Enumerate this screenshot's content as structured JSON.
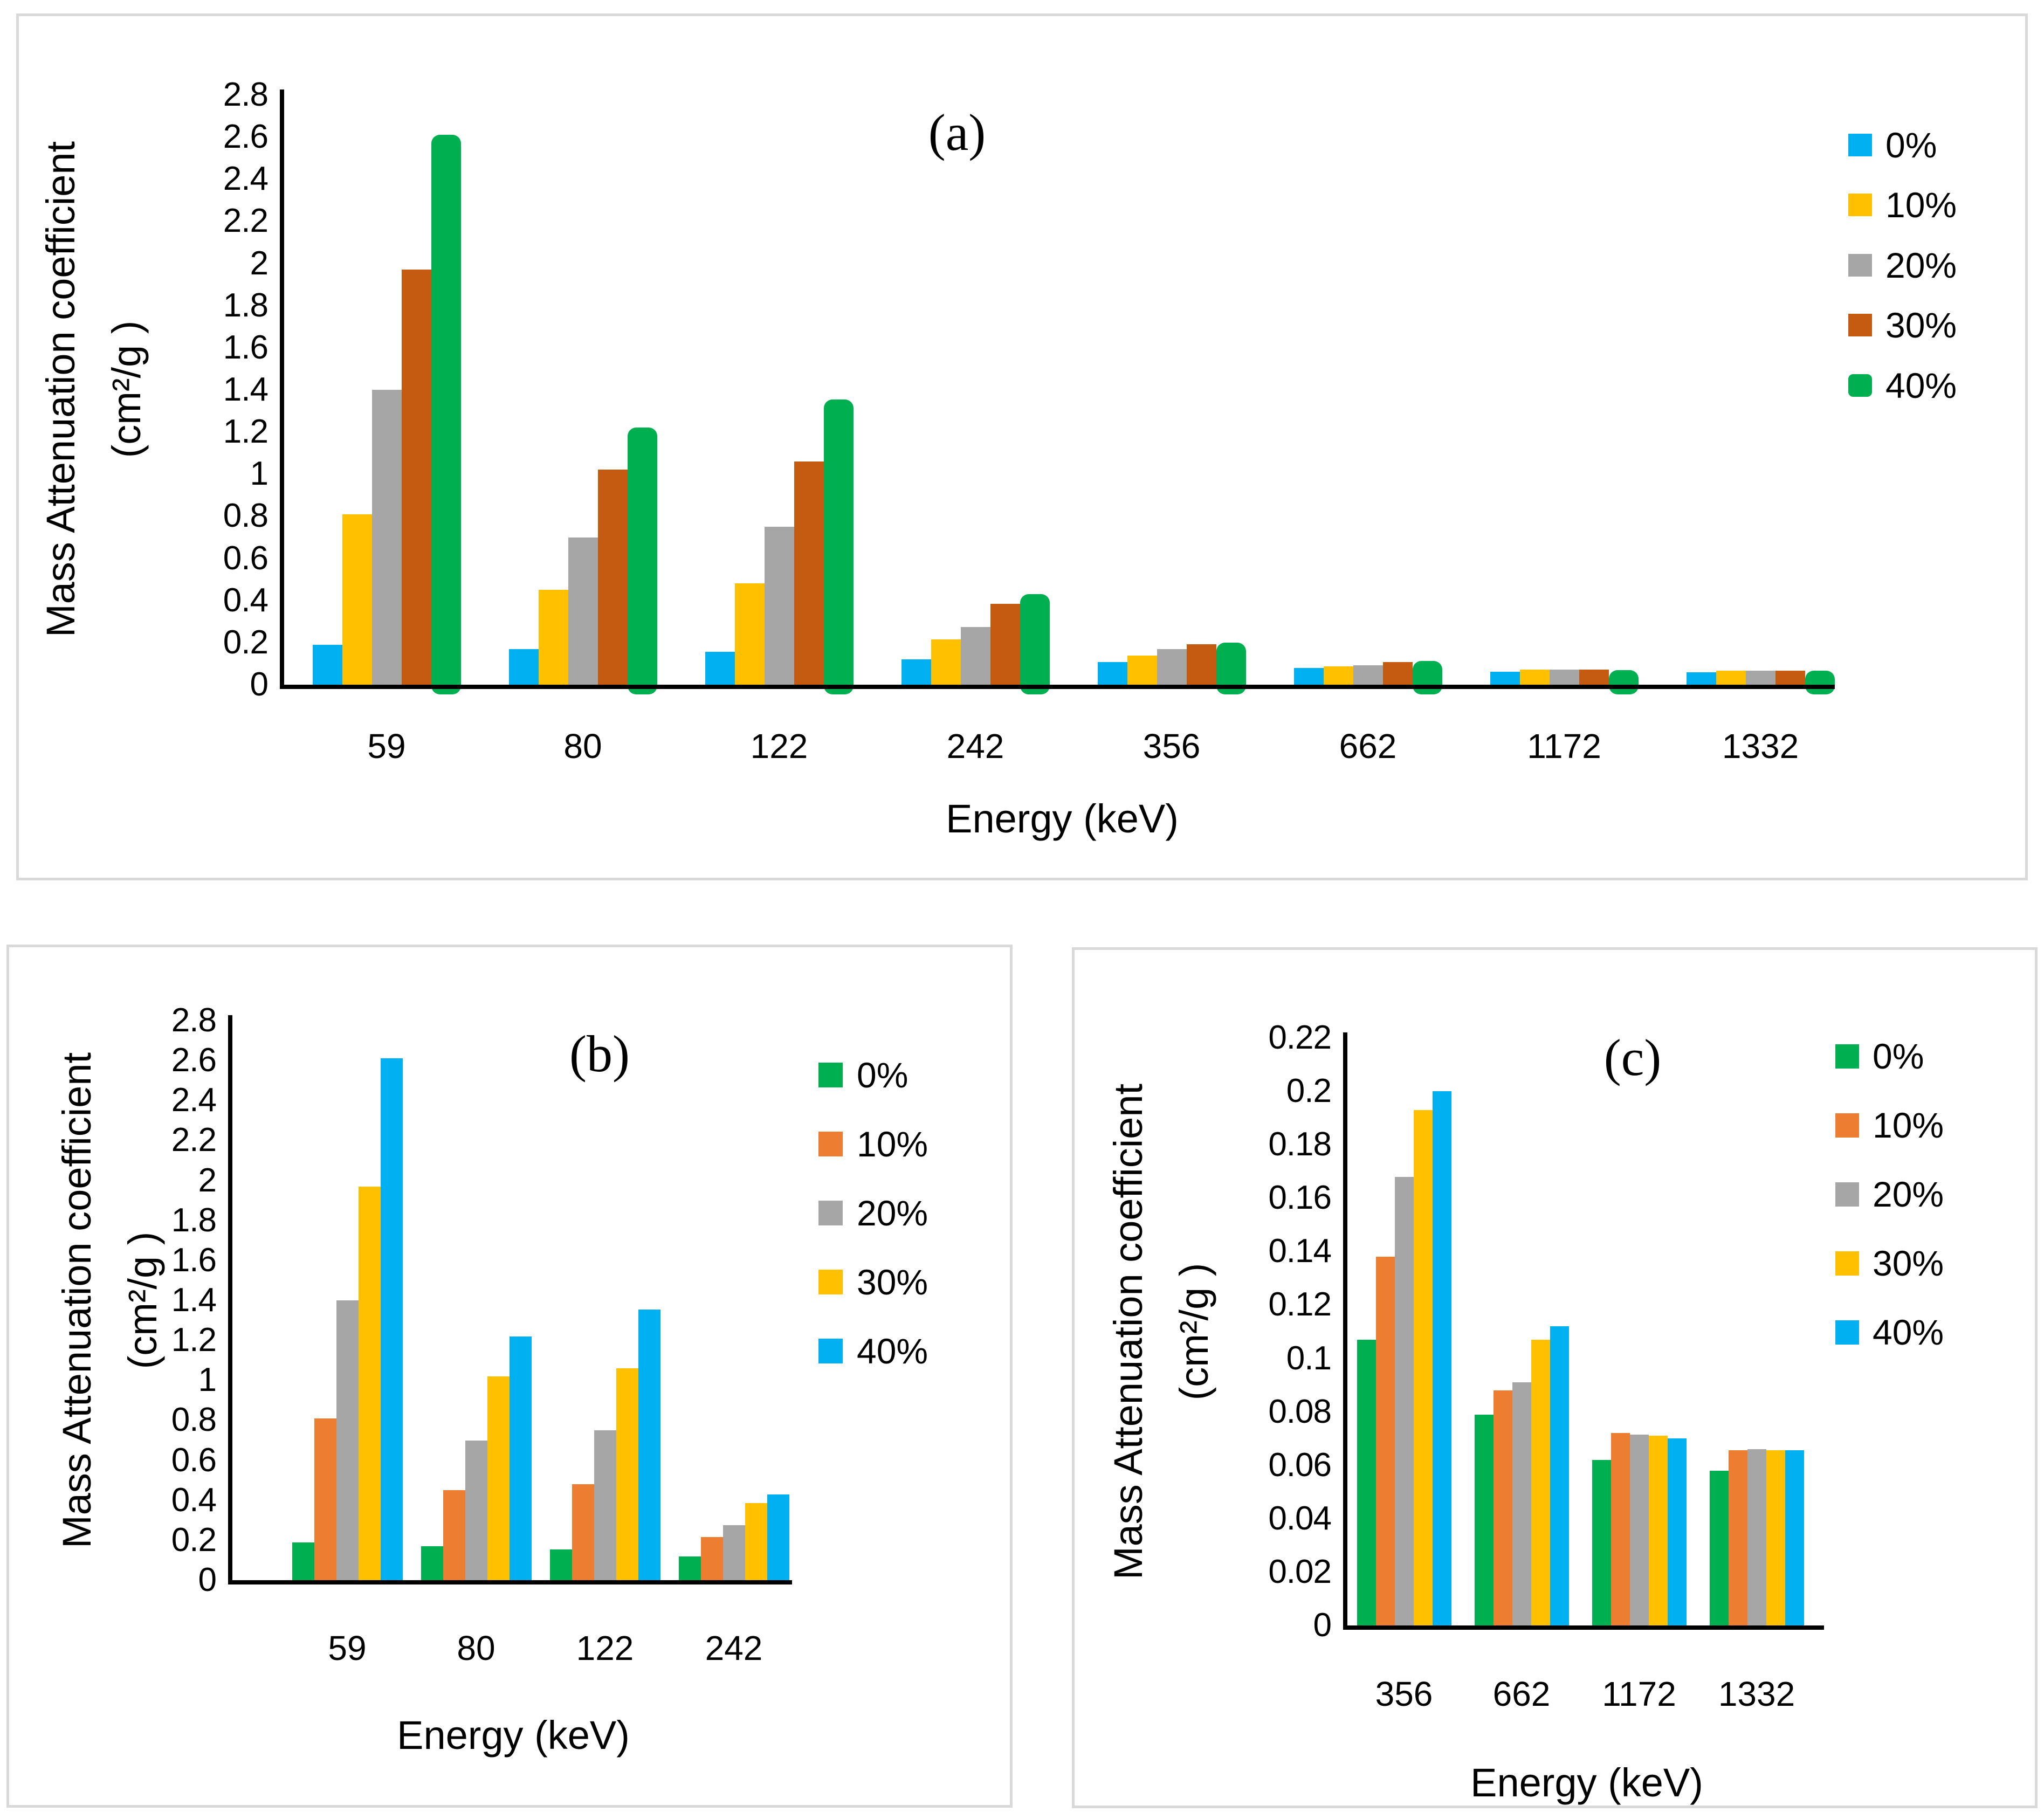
{
  "figure": {
    "background_color": "#ffffff",
    "panel_border_color": "#d9d9d9",
    "axis_color": "#000000"
  },
  "chart_data": [
    {
      "panel": "a",
      "type": "bar",
      "title": "(a)",
      "xlabel": "Energy (keV)",
      "ylabel_line1": "Mass Attenuation coefficient",
      "ylabel_line2": "(cm²/g )",
      "categories": [
        "59",
        "80",
        "122",
        "242",
        "356",
        "662",
        "1172",
        "1332"
      ],
      "ylim": [
        0,
        2.8
      ],
      "y_ticks": [
        "2.8",
        "2.6",
        "2.4",
        "2.2",
        "2",
        "1.8",
        "1.6",
        "1.4",
        "1.2",
        "1",
        "0.8",
        "0.6",
        "0.4",
        "0.2",
        "0"
      ],
      "grid": "off",
      "legend_position": "right",
      "series": [
        {
          "name": "0%",
          "color": "#00B0F0",
          "rounded": false,
          "values": [
            0.19,
            0.17,
            0.155,
            0.12,
            0.107,
            0.079,
            0.062,
            0.058
          ]
        },
        {
          "name": "10%",
          "color": "#FFC000",
          "rounded": false,
          "values": [
            0.81,
            0.45,
            0.48,
            0.215,
            0.138,
            0.088,
            0.072,
            0.0655
          ]
        },
        {
          "name": "20%",
          "color": "#A6A6A6",
          "rounded": false,
          "values": [
            1.4,
            0.7,
            0.75,
            0.275,
            0.168,
            0.091,
            0.0715,
            0.066
          ]
        },
        {
          "name": "30%",
          "color": "#C55A11",
          "rounded": false,
          "values": [
            1.97,
            1.02,
            1.06,
            0.385,
            0.193,
            0.107,
            0.071,
            0.0655
          ]
        },
        {
          "name": "40%",
          "color": "#00B050",
          "rounded": true,
          "values": [
            2.61,
            1.22,
            1.355,
            0.43,
            0.2,
            0.112,
            0.07,
            0.0655
          ]
        }
      ]
    },
    {
      "panel": "b",
      "type": "bar",
      "title": "(b)",
      "xlabel": "Energy (keV)",
      "ylabel_line1": "Mass Attenuation coefficient",
      "ylabel_line2": "(cm²/g )",
      "categories": [
        "59",
        "80",
        "122",
        "242"
      ],
      "ylim": [
        0,
        2.8
      ],
      "y_ticks": [
        "2.8",
        "2.6",
        "2.4",
        "2.2",
        "2",
        "1.8",
        "1.6",
        "1.4",
        "1.2",
        "1",
        "0.8",
        "0.6",
        "0.4",
        "0.2",
        "0"
      ],
      "grid": "off",
      "legend_position": "right",
      "series": [
        {
          "name": "0%",
          "color": "#00B050",
          "rounded": false,
          "values": [
            0.19,
            0.17,
            0.155,
            0.12
          ]
        },
        {
          "name": "10%",
          "color": "#ED7D31",
          "rounded": false,
          "values": [
            0.81,
            0.45,
            0.48,
            0.215
          ]
        },
        {
          "name": "20%",
          "color": "#A6A6A6",
          "rounded": false,
          "values": [
            1.4,
            0.7,
            0.75,
            0.275
          ]
        },
        {
          "name": "30%",
          "color": "#FFC000",
          "rounded": false,
          "values": [
            1.97,
            1.02,
            1.06,
            0.385
          ]
        },
        {
          "name": "40%",
          "color": "#00B0F0",
          "rounded": false,
          "values": [
            2.61,
            1.22,
            1.355,
            0.43
          ]
        }
      ]
    },
    {
      "panel": "c",
      "type": "bar",
      "title": "(c)",
      "xlabel": "Energy (keV)",
      "ylabel_line1": "Mass Attenuation coefficient",
      "ylabel_line2": "(cm²/g )",
      "categories": [
        "356",
        "662",
        "1172",
        "1332"
      ],
      "ylim": [
        0,
        0.22
      ],
      "y_ticks": [
        "0.22",
        "0.2",
        "0.18",
        "0.16",
        "0.14",
        "0.12",
        "0.1",
        "0.08",
        "0.06",
        "0.04",
        "0.02",
        "0"
      ],
      "grid": "off",
      "legend_position": "right",
      "series": [
        {
          "name": "0%",
          "color": "#00B050",
          "rounded": false,
          "values": [
            0.107,
            0.079,
            0.062,
            0.058
          ]
        },
        {
          "name": "10%",
          "color": "#ED7D31",
          "rounded": false,
          "values": [
            0.138,
            0.088,
            0.072,
            0.0655
          ]
        },
        {
          "name": "20%",
          "color": "#A6A6A6",
          "rounded": false,
          "values": [
            0.168,
            0.091,
            0.0715,
            0.066
          ]
        },
        {
          "name": "30%",
          "color": "#FFC000",
          "rounded": false,
          "values": [
            0.193,
            0.107,
            0.071,
            0.0655
          ]
        },
        {
          "name": "40%",
          "color": "#00B0F0",
          "rounded": false,
          "values": [
            0.2,
            0.112,
            0.07,
            0.0655
          ]
        }
      ]
    }
  ]
}
